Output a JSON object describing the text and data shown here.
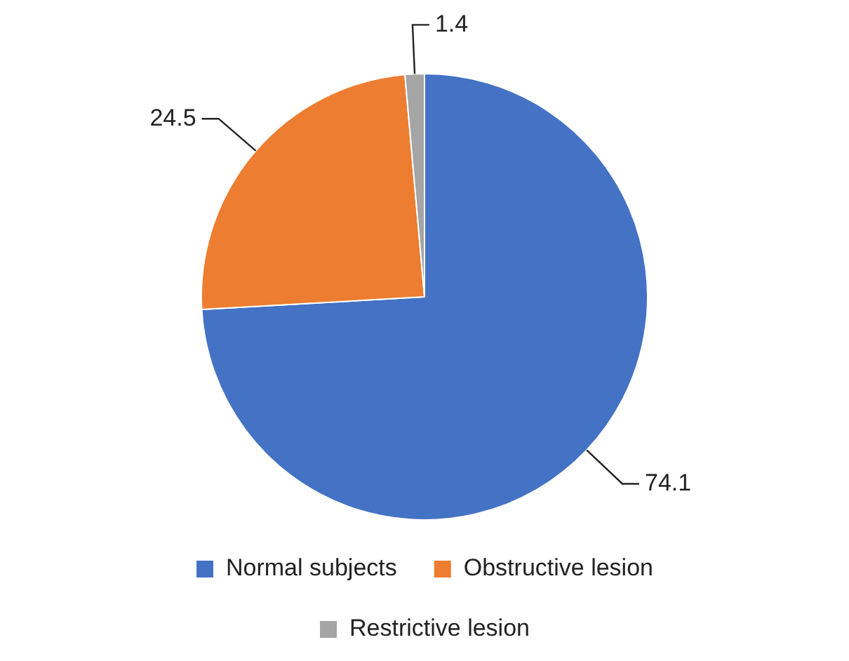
{
  "chart_data": {
    "type": "pie",
    "categories": [
      "Normal subjects",
      "Obstructive lesion",
      "Restrictive lesion"
    ],
    "values": [
      74.1,
      24.5,
      1.4
    ],
    "colors": [
      "#4472c4",
      "#ed7d31",
      "#a5a5a5"
    ],
    "data_labels": true,
    "legend": "bottom"
  }
}
